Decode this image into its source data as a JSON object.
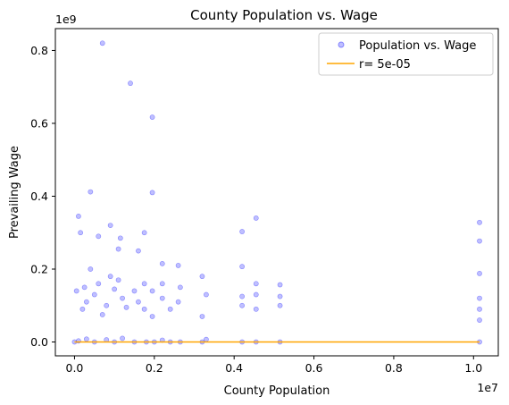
{
  "chart_data": {
    "type": "scatter",
    "title": "County Population vs. Wage",
    "xlabel": "County Population",
    "ylabel": "Prevailing Wage",
    "x_multiplier_label": "1e7",
    "y_multiplier_label": "1e9",
    "xlim": [
      -480000,
      10620000
    ],
    "ylim": [
      -38000000,
      860000000
    ],
    "x_ticks": [
      0,
      2000000,
      4000000,
      6000000,
      8000000,
      10000000
    ],
    "x_tick_labels": [
      "0.0",
      "0.2",
      "0.4",
      "0.6",
      "0.8",
      "1.0"
    ],
    "y_ticks": [
      0,
      200000000,
      400000000,
      600000000,
      800000000
    ],
    "y_tick_labels": [
      "0.0",
      "0.2",
      "0.4",
      "0.6",
      "0.8"
    ],
    "grid": false,
    "legend_position": "top-right",
    "series": [
      {
        "name": "Population vs. Wage",
        "kind": "scatter",
        "color": "#0000ff",
        "alpha": 0.25,
        "points": [
          [
            700000,
            820000000
          ],
          [
            1400000,
            710000000
          ],
          [
            1950000,
            617000000
          ],
          [
            400000,
            412000000
          ],
          [
            1950000,
            410000000
          ],
          [
            4550000,
            340000000
          ],
          [
            10150000,
            328000000
          ],
          [
            100000,
            345000000
          ],
          [
            900000,
            320000000
          ],
          [
            4200000,
            303000000
          ],
          [
            10150000,
            277000000
          ],
          [
            1750000,
            300000000
          ],
          [
            150000,
            300000000
          ],
          [
            1150000,
            285000000
          ],
          [
            2600000,
            210000000
          ],
          [
            1600000,
            250000000
          ],
          [
            600000,
            290000000
          ],
          [
            1100000,
            255000000
          ],
          [
            2200000,
            215000000
          ],
          [
            3200000,
            180000000
          ],
          [
            4200000,
            207000000
          ],
          [
            4550000,
            160000000
          ],
          [
            5150000,
            157000000
          ],
          [
            10150000,
            188000000
          ],
          [
            10150000,
            120000000
          ],
          [
            10150000,
            90000000
          ],
          [
            5150000,
            100000000
          ],
          [
            4550000,
            90000000
          ],
          [
            4200000,
            100000000
          ],
          [
            3300000,
            130000000
          ],
          [
            2600000,
            110000000
          ],
          [
            2200000,
            120000000
          ],
          [
            1950000,
            140000000
          ],
          [
            1750000,
            160000000
          ],
          [
            1500000,
            140000000
          ],
          [
            300000,
            110000000
          ],
          [
            500000,
            130000000
          ],
          [
            800000,
            100000000
          ],
          [
            1000000,
            145000000
          ],
          [
            1200000,
            120000000
          ],
          [
            200000,
            90000000
          ],
          [
            600000,
            160000000
          ],
          [
            900000,
            180000000
          ],
          [
            50000,
            140000000
          ],
          [
            1300000,
            95000000
          ],
          [
            400000,
            200000000
          ],
          [
            700000,
            75000000
          ],
          [
            1600000,
            110000000
          ],
          [
            1100000,
            170000000
          ],
          [
            250000,
            150000000
          ],
          [
            2400000,
            90000000
          ],
          [
            3200000,
            70000000
          ],
          [
            1950000,
            70000000
          ],
          [
            10150000,
            60000000
          ],
          [
            4550000,
            130000000
          ],
          [
            5150000,
            125000000
          ],
          [
            4200000,
            125000000
          ],
          [
            2650000,
            150000000
          ],
          [
            1750000,
            90000000
          ],
          [
            2200000,
            160000000
          ],
          [
            0,
            0
          ],
          [
            500000,
            0
          ],
          [
            1000000,
            0
          ],
          [
            1500000,
            0
          ],
          [
            1800000,
            0
          ],
          [
            2000000,
            0
          ],
          [
            2400000,
            0
          ],
          [
            2650000,
            0
          ],
          [
            3200000,
            0
          ],
          [
            4200000,
            0
          ],
          [
            4550000,
            0
          ],
          [
            5150000,
            0
          ],
          [
            10150000,
            0
          ],
          [
            300000,
            8000000
          ],
          [
            800000,
            6000000
          ],
          [
            1200000,
            10000000
          ],
          [
            100000,
            3000000
          ],
          [
            2200000,
            5000000
          ],
          [
            3300000,
            7000000
          ]
        ]
      },
      {
        "name": "r= 5e-05",
        "kind": "line",
        "color": "#ffa500",
        "points": [
          [
            0,
            0
          ],
          [
            10150000,
            0
          ]
        ]
      }
    ]
  }
}
